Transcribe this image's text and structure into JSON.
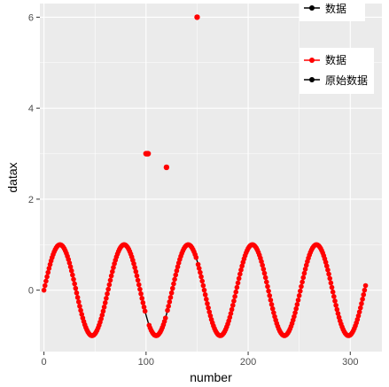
{
  "chart_data": {
    "type": "scatter",
    "xlabel": "number",
    "ylabel": "datax",
    "xlim": [
      -4,
      331
    ],
    "ylim": [
      -1.35,
      6.3
    ],
    "x_ticks": [
      0,
      100,
      200,
      300
    ],
    "y_ticks": [
      0,
      2,
      4,
      6
    ],
    "grid": true,
    "panel_color": "#ebebeb",
    "series": [
      {
        "name": "数据",
        "kind": "points",
        "color": "#ff0000",
        "generator": "sin",
        "x_range": [
          0,
          315
        ],
        "period": 62.8,
        "outliers": [
          {
            "x": 100,
            "y": 3
          },
          {
            "x": 101,
            "y": 3
          },
          {
            "x": 102,
            "y": 3
          },
          {
            "x": 120,
            "y": 2.7
          },
          {
            "x": 150,
            "y": 6
          }
        ]
      },
      {
        "name": "原始数据",
        "kind": "line",
        "color": "#000000",
        "generator": "sin",
        "x_range": [
          0,
          315
        ],
        "period": 62.8
      }
    ],
    "legends": [
      {
        "position": "top-right",
        "entries": [
          {
            "label": "数据",
            "color": "#000000"
          }
        ]
      },
      {
        "position": "right",
        "entries": [
          {
            "label": "数据",
            "color": "#ff0000"
          },
          {
            "label": "原始数据",
            "color": "#000000"
          }
        ]
      }
    ]
  }
}
